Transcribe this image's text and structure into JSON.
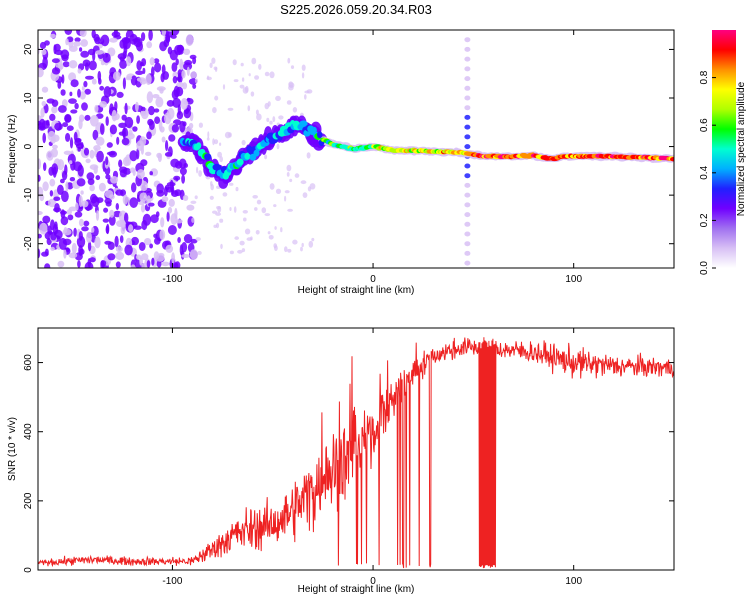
{
  "title": "S225.2026.059.20.34.R03",
  "chart_data": [
    {
      "type": "heatmap",
      "name": "spectrogram",
      "xlabel": "Height of straight line (km)",
      "ylabel": "Frequency (Hz)",
      "xlim": [
        -167,
        150
      ],
      "ylim": [
        -25,
        24
      ],
      "xticks": [
        -100,
        0,
        100
      ],
      "yticks": [
        -20,
        -10,
        0,
        10,
        20
      ],
      "xtick_labels": [
        "-100",
        "0",
        "100"
      ],
      "ytick_labels": [
        "-20",
        "-10",
        "0",
        "10",
        "20"
      ],
      "ridge": [
        {
          "x": -90,
          "f": 1.0
        },
        {
          "x": -85,
          "f": -1.0
        },
        {
          "x": -80,
          "f": -4.5
        },
        {
          "x": -75,
          "f": -6.0
        },
        {
          "x": -70,
          "f": -4.5
        },
        {
          "x": -65,
          "f": -2.0
        },
        {
          "x": -60,
          "f": -1.0
        },
        {
          "x": -55,
          "f": 0.5
        },
        {
          "x": -50,
          "f": 1.5
        },
        {
          "x": -45,
          "f": 2.5
        },
        {
          "x": -40,
          "f": 4.5
        },
        {
          "x": -35,
          "f": 4.0
        },
        {
          "x": -30,
          "f": 3.0
        },
        {
          "x": -25,
          "f": 1.5
        },
        {
          "x": -20,
          "f": 0.5
        },
        {
          "x": -15,
          "f": 0.0
        },
        {
          "x": -10,
          "f": -0.5
        },
        {
          "x": 0,
          "f": 0.0
        },
        {
          "x": 10,
          "f": -0.8
        },
        {
          "x": 20,
          "f": -0.8
        },
        {
          "x": 30,
          "f": -1.0
        },
        {
          "x": 40,
          "f": -1.2
        },
        {
          "x": 46,
          "f": -1.3
        },
        {
          "x": 55,
          "f": -2.0
        },
        {
          "x": 70,
          "f": -2.0
        },
        {
          "x": 80,
          "f": -1.8
        },
        {
          "x": 85,
          "f": -2.3
        },
        {
          "x": 90,
          "f": -2.5
        },
        {
          "x": 95,
          "f": -2.0
        },
        {
          "x": 110,
          "f": -2.0
        },
        {
          "x": 130,
          "f": -2.2
        },
        {
          "x": 150,
          "f": -2.5
        }
      ],
      "colorbar": {
        "label": "Normalized spectral amplitude",
        "range": [
          0.0,
          1.0
        ],
        "ticks": [
          0.0,
          0.2,
          0.4,
          0.6,
          0.8
        ],
        "tick_labels": [
          "0.0",
          "0.2",
          "0.4",
          "0.6",
          "0.8"
        ],
        "colormap": [
          "#ffffff",
          "#d8c0f5",
          "#a070f0",
          "#7000ff",
          "#2020ff",
          "#00b0ff",
          "#00ffd0",
          "#00ff00",
          "#b0ff00",
          "#ffff00",
          "#ff9000",
          "#ff0000",
          "#ff0080"
        ]
      }
    },
    {
      "type": "line",
      "name": "snr",
      "xlabel": "Height of straight line (km)",
      "ylabel": "SNR (10 * v/v)",
      "xlim": [
        -167,
        150
      ],
      "ylim": [
        0,
        700
      ],
      "xticks": [
        -100,
        0,
        100
      ],
      "yticks": [
        0,
        200,
        400,
        600
      ],
      "xtick_labels": [
        "-100",
        "0",
        "100"
      ],
      "ytick_labels": [
        "0",
        "200",
        "400",
        "600"
      ],
      "color": "#ee2222",
      "envelope": [
        {
          "x": -167,
          "mean": 20,
          "spread": 15
        },
        {
          "x": -140,
          "mean": 30,
          "spread": 25
        },
        {
          "x": -120,
          "mean": 25,
          "spread": 20
        },
        {
          "x": -90,
          "mean": 25,
          "spread": 25
        },
        {
          "x": -80,
          "mean": 60,
          "spread": 60
        },
        {
          "x": -70,
          "mean": 100,
          "spread": 90
        },
        {
          "x": -60,
          "mean": 120,
          "spread": 120
        },
        {
          "x": -50,
          "mean": 130,
          "spread": 110
        },
        {
          "x": -40,
          "mean": 170,
          "spread": 150
        },
        {
          "x": -30,
          "mean": 230,
          "spread": 200
        },
        {
          "x": -20,
          "mean": 300,
          "spread": 220
        },
        {
          "x": -10,
          "mean": 340,
          "spread": 200
        },
        {
          "x": 0,
          "mean": 400,
          "spread": 150
        },
        {
          "x": 10,
          "mean": 500,
          "spread": 130
        },
        {
          "x": 20,
          "mean": 570,
          "spread": 80
        },
        {
          "x": 30,
          "mean": 620,
          "spread": 60
        },
        {
          "x": 45,
          "mean": 645,
          "spread": 50
        },
        {
          "x": 60,
          "mean": 640,
          "spread": 50
        },
        {
          "x": 80,
          "mean": 630,
          "spread": 60
        },
        {
          "x": 100,
          "mean": 600,
          "spread": 80
        },
        {
          "x": 120,
          "mean": 590,
          "spread": 60
        },
        {
          "x": 150,
          "mean": 585,
          "spread": 50
        }
      ],
      "dropout_ranges": [
        [
          53,
          61
        ]
      ],
      "spike_range": [
        -30,
        30
      ]
    }
  ]
}
